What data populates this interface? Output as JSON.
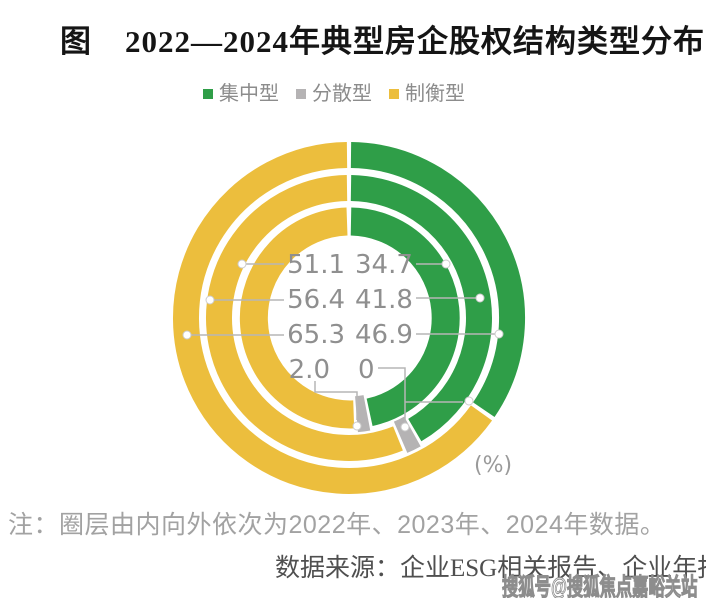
{
  "title": {
    "prefix": "图",
    "text": "2022—2024年典型房企股权结构类型分布"
  },
  "legend": [
    {
      "label": "集中型",
      "color": "#2f9e48"
    },
    {
      "label": "分散型",
      "color": "#b5b3b4"
    },
    {
      "label": "制衡型",
      "color": "#ecbe3d"
    }
  ],
  "chart_data": {
    "type": "donut",
    "title": "2022—2024年典型房企股权结构类型分布",
    "unit_label": "(%)",
    "legend_position": "top",
    "rings_inner_to_outer": [
      "2022年",
      "2023年",
      "2024年"
    ],
    "categories": [
      "集中型",
      "分散型",
      "制衡型"
    ],
    "series": [
      {
        "name": "集中型",
        "color": "#2f9e48",
        "values_inner_to_outer": [
          46.9,
          41.8,
          34.7
        ]
      },
      {
        "name": "分散型",
        "color": "#b5b3b4",
        "values_inner_to_outer": [
          2.0,
          1.8,
          0
        ]
      },
      {
        "name": "制衡型",
        "color": "#ecbe3d",
        "values_inner_to_outer": [
          51.1,
          56.4,
          65.3
        ]
      }
    ],
    "value_labels": {
      "left_column": [
        "51.1",
        "56.4",
        "65.3",
        "2.0"
      ],
      "right_column": [
        "34.7",
        "41.8",
        "46.9",
        "0"
      ]
    }
  },
  "note": "注：圈层由内向外依次为2022年、2023年、2024年数据。",
  "source": "数据来源：企业ESG相关报告、企业年报。",
  "watermark": "搜狐号@搜狐焦点嘉峪关站"
}
